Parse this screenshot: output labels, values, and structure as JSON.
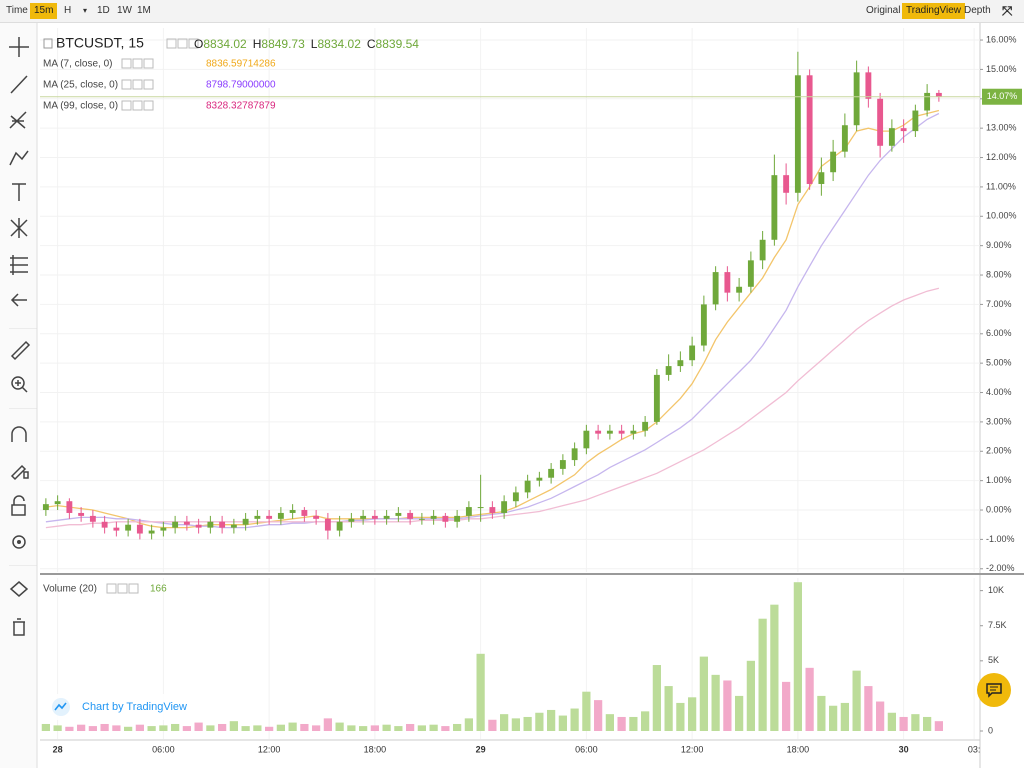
{
  "toolbar": {
    "intervals": [
      "Time",
      "15m",
      "H",
      "1D",
      "1W",
      "1M"
    ],
    "views": [
      "Original",
      "TradingView",
      "Depth"
    ]
  },
  "chart_data": {
    "type": "candlestick",
    "symbol": "BTCUSDT, 15",
    "ohlc_legend": [
      {
        "label": "O",
        "value": 8834.02
      },
      {
        "label": "H",
        "value": 8849.73
      },
      {
        "label": "L",
        "value": 8834.02
      },
      {
        "label": "C",
        "value": 8839.54
      }
    ],
    "categories": [
      null,
      "28",
      null,
      null,
      null,
      null,
      null,
      null,
      null,
      null,
      "06:00",
      null,
      null,
      null,
      null,
      null,
      null,
      null,
      null,
      "12:00",
      null,
      null,
      null,
      null,
      null,
      null,
      null,
      null,
      "18:00",
      null,
      null,
      null,
      null,
      null,
      null,
      null,
      null,
      "29",
      null,
      null,
      null,
      null,
      null,
      null,
      null,
      null,
      "06:00",
      null,
      null,
      null,
      null,
      null,
      null,
      null,
      null,
      "12:00",
      null,
      null,
      null,
      null,
      null,
      null,
      null,
      null,
      "18:00",
      null,
      null,
      null,
      null,
      null,
      null,
      null,
      null,
      "30",
      null,
      null,
      null,
      null,
      null,
      "03:"
    ],
    "candles": {
      "open": [
        0,
        0.2,
        0.3,
        -0.1,
        -0.2,
        -0.4,
        -0.6,
        -0.7,
        -0.5,
        -0.8,
        -0.7,
        -0.6,
        -0.4,
        -0.5,
        -0.6,
        -0.4,
        -0.6,
        -0.5,
        -0.3,
        -0.2,
        -0.3,
        -0.1,
        0,
        -0.2,
        -0.3,
        -0.7,
        -0.4,
        -0.3,
        -0.2,
        -0.3,
        -0.2,
        -0.1,
        -0.3,
        -0.3,
        -0.2,
        -0.4,
        -0.2,
        0.1,
        0.1,
        -0.1,
        0.3,
        0.6,
        1.0,
        1.1,
        1.4,
        1.7,
        2.1,
        2.7,
        2.6,
        2.7,
        2.6,
        2.7,
        3.0,
        4.6,
        4.9,
        5.1,
        5.6,
        7.0,
        8.1,
        7.4,
        7.6,
        8.5,
        9.2,
        11.4,
        10.8,
        14.8,
        11.1,
        11.5,
        12.2,
        13.1,
        14.9,
        14.0,
        12.4,
        13.0,
        12.9,
        13.6,
        14.2,
        null,
        null,
        null
      ],
      "high": [
        0.4,
        0.5,
        0.4,
        0.1,
        0,
        -0.2,
        -0.4,
        -0.3,
        -0.3,
        -0.5,
        -0.4,
        -0.2,
        -0.2,
        -0.3,
        -0.2,
        -0.2,
        -0.3,
        -0.1,
        0,
        0,
        0.1,
        0.2,
        0.1,
        0,
        -0.1,
        -0.2,
        -0.1,
        0,
        0,
        0,
        0.1,
        0,
        -0.1,
        0,
        -0.1,
        0,
        0.3,
        1.2,
        0.3,
        0.5,
        0.8,
        1.2,
        1.3,
        1.6,
        1.9,
        2.3,
        2.9,
        2.9,
        2.9,
        2.9,
        2.9,
        3.2,
        4.8,
        5.3,
        5.4,
        5.9,
        7.3,
        8.3,
        8.3,
        7.9,
        8.8,
        9.5,
        12.1,
        11.8,
        15.6,
        15.0,
        12.0,
        12.6,
        13.5,
        15.3,
        15.1,
        14.2,
        13.3,
        13.3,
        13.8,
        14.5,
        14.3,
        null,
        null,
        null
      ],
      "low": [
        -0.2,
        0,
        -0.3,
        -0.4,
        -0.6,
        -0.8,
        -0.9,
        -0.9,
        -1.0,
        -1.0,
        -0.9,
        -0.8,
        -0.7,
        -0.8,
        -0.8,
        -0.8,
        -0.8,
        -0.7,
        -0.5,
        -0.5,
        -0.5,
        -0.3,
        -0.4,
        -0.5,
        -1.0,
        -0.9,
        -0.6,
        -0.5,
        -0.5,
        -0.5,
        -0.4,
        -0.5,
        -0.5,
        -0.5,
        -0.6,
        -0.6,
        -0.4,
        -0.4,
        -0.3,
        -0.3,
        0.1,
        0.4,
        0.8,
        0.9,
        1.2,
        1.5,
        1.9,
        2.4,
        2.4,
        2.4,
        2.4,
        2.5,
        2.9,
        4.4,
        4.7,
        4.9,
        5.4,
        6.8,
        7.1,
        7.1,
        7.4,
        8.2,
        9.0,
        10.4,
        10.5,
        10.9,
        10.7,
        11.2,
        12.0,
        12.9,
        13.7,
        12.0,
        12.2,
        12.5,
        12.7,
        13.4,
        13.9,
        null,
        null,
        null
      ],
      "close": [
        0.2,
        0.3,
        -0.1,
        -0.2,
        -0.4,
        -0.6,
        -0.7,
        -0.5,
        -0.8,
        -0.7,
        -0.6,
        -0.4,
        -0.5,
        -0.6,
        -0.4,
        -0.6,
        -0.5,
        -0.3,
        -0.2,
        -0.3,
        -0.1,
        0,
        -0.2,
        -0.3,
        -0.7,
        -0.4,
        -0.3,
        -0.2,
        -0.3,
        -0.2,
        -0.1,
        -0.3,
        -0.3,
        -0.2,
        -0.4,
        -0.2,
        0.1,
        0.1,
        -0.1,
        0.3,
        0.6,
        1.0,
        1.1,
        1.4,
        1.7,
        2.1,
        2.7,
        2.6,
        2.7,
        2.6,
        2.7,
        3.0,
        4.6,
        4.9,
        5.1,
        5.6,
        7.0,
        8.1,
        7.4,
        7.6,
        8.5,
        9.2,
        11.4,
        10.8,
        14.8,
        11.1,
        11.5,
        12.2,
        13.1,
        14.9,
        14.0,
        12.4,
        13.0,
        12.9,
        13.6,
        14.2,
        14.07,
        null,
        null,
        null
      ]
    },
    "up_color": "#6fa83a",
    "down_color": "#e8588f",
    "series": [
      {
        "name": "MA (7, close, 0)",
        "value": 8836.59714286,
        "label_color": "#f0a818",
        "color": "#f3c56b",
        "values": [
          0.1,
          0.15,
          0.1,
          0.05,
          0,
          -0.1,
          -0.2,
          -0.3,
          -0.45,
          -0.55,
          -0.6,
          -0.6,
          -0.6,
          -0.55,
          -0.5,
          -0.5,
          -0.5,
          -0.5,
          -0.45,
          -0.4,
          -0.35,
          -0.3,
          -0.25,
          -0.2,
          -0.3,
          -0.3,
          -0.3,
          -0.3,
          -0.3,
          -0.3,
          -0.3,
          -0.25,
          -0.25,
          -0.25,
          -0.25,
          -0.25,
          -0.2,
          -0.15,
          -0.1,
          -0.05,
          0.1,
          0.3,
          0.5,
          0.7,
          0.95,
          1.2,
          1.6,
          1.9,
          2.15,
          2.4,
          2.6,
          2.7,
          3.0,
          3.4,
          3.8,
          4.3,
          5.0,
          5.8,
          6.4,
          6.9,
          7.4,
          7.9,
          8.6,
          9.2,
          10.4,
          11.0,
          11.7,
          12.0,
          12.3,
          12.9,
          13.0,
          12.9,
          12.9,
          13.1,
          13.4,
          13.5,
          13.6,
          null,
          null,
          null
        ]
      },
      {
        "name": "MA (25, close, 0)",
        "value": 8798.79,
        "value_label": "8798.79000000",
        "label_color": "#8a3bff",
        "color": "#c6b6ee",
        "values": [
          -0.4,
          -0.35,
          -0.3,
          -0.25,
          -0.25,
          -0.25,
          -0.3,
          -0.3,
          -0.35,
          -0.4,
          -0.45,
          -0.5,
          -0.5,
          -0.55,
          -0.55,
          -0.6,
          -0.6,
          -0.6,
          -0.55,
          -0.5,
          -0.5,
          -0.45,
          -0.45,
          -0.4,
          -0.4,
          -0.4,
          -0.35,
          -0.35,
          -0.3,
          -0.3,
          -0.3,
          -0.3,
          -0.3,
          -0.3,
          -0.3,
          -0.3,
          -0.25,
          -0.2,
          -0.15,
          -0.1,
          0,
          0.1,
          0.25,
          0.4,
          0.6,
          0.8,
          1.0,
          1.2,
          1.45,
          1.65,
          1.85,
          2.05,
          2.3,
          2.55,
          2.8,
          3.1,
          3.5,
          3.9,
          4.3,
          4.7,
          5.1,
          5.6,
          6.2,
          6.8,
          7.6,
          8.3,
          9.0,
          9.6,
          10.2,
          10.8,
          11.4,
          11.9,
          12.3,
          12.7,
          13.0,
          13.3,
          13.5,
          null,
          null,
          null
        ]
      },
      {
        "name": "MA (99, close, 0)",
        "value": 8328.32787879,
        "label_color": "#d9267e",
        "color": "#f1bdd4",
        "values": [
          -0.6,
          -0.55,
          -0.5,
          -0.5,
          -0.45,
          -0.45,
          -0.4,
          -0.4,
          -0.4,
          -0.4,
          -0.4,
          -0.4,
          -0.4,
          -0.4,
          -0.4,
          -0.4,
          -0.4,
          -0.4,
          -0.4,
          -0.4,
          -0.4,
          -0.4,
          -0.4,
          -0.4,
          -0.4,
          -0.4,
          -0.4,
          -0.4,
          -0.4,
          -0.4,
          -0.4,
          -0.4,
          -0.35,
          -0.35,
          -0.35,
          -0.35,
          -0.3,
          -0.3,
          -0.25,
          -0.2,
          -0.15,
          -0.1,
          -0.05,
          0.05,
          0.15,
          0.25,
          0.35,
          0.5,
          0.65,
          0.8,
          0.95,
          1.1,
          1.25,
          1.45,
          1.65,
          1.85,
          2.05,
          2.3,
          2.55,
          2.8,
          3.1,
          3.4,
          3.7,
          4.0,
          4.4,
          4.75,
          5.1,
          5.45,
          5.8,
          6.15,
          6.45,
          6.7,
          6.95,
          7.15,
          7.3,
          7.45,
          7.55,
          null,
          null,
          null
        ]
      }
    ],
    "ylim": [
      -2.11,
      16.41
    ],
    "yticks": [
      {
        "value": 16,
        "label": "16.00%"
      },
      {
        "value": 15,
        "label": "15.00%"
      },
      {
        "value": 14,
        "label": "14.00%"
      },
      {
        "value": 13,
        "label": "13.00%"
      },
      {
        "value": 12,
        "label": "12.00%"
      },
      {
        "value": 11,
        "label": "11.00%"
      },
      {
        "value": 10,
        "label": "10.00%"
      },
      {
        "value": 9,
        "label": "9.00%"
      },
      {
        "value": 8,
        "label": "8.00%"
      },
      {
        "value": 7,
        "label": "7.00%"
      },
      {
        "value": 6,
        "label": "6.00%"
      },
      {
        "value": 5,
        "label": "5.00%"
      },
      {
        "value": 4,
        "label": "4.00%"
      },
      {
        "value": 3,
        "label": "3.00%"
      },
      {
        "value": 2,
        "label": "2.00%"
      },
      {
        "value": 1,
        "label": "1.00%"
      },
      {
        "value": 0,
        "label": "0.00%"
      },
      {
        "value": -1,
        "label": "-1.00%"
      },
      {
        "value": -2,
        "label": "-2.00%"
      }
    ],
    "grid": true,
    "last_value": 14.07,
    "last_label": "14.07%",
    "last_color": "#7cb342",
    "volume": {
      "name": "Volume (20)",
      "value": 166,
      "values": [
        500,
        400,
        300,
        450,
        350,
        500,
        400,
        300,
        450,
        350,
        400,
        500,
        350,
        600,
        400,
        500,
        700,
        350,
        400,
        300,
        450,
        600,
        500,
        400,
        900,
        600,
        400,
        350,
        400,
        450,
        350,
        500,
        400,
        450,
        350,
        500,
        900,
        5500,
        800,
        1200,
        900,
        1000,
        1300,
        1500,
        1100,
        1600,
        2800,
        2200,
        1200,
        1000,
        1000,
        1400,
        4700,
        3200,
        2000,
        2400,
        5300,
        4000,
        3600,
        2500,
        5000,
        8000,
        9000,
        3500,
        10600,
        4500,
        2500,
        1800,
        2000,
        4300,
        3200,
        2100,
        1300,
        1000,
        1200,
        1000,
        700,
        null,
        null,
        null
      ],
      "ylim": [
        0,
        10900
      ],
      "yticks": [
        {
          "value": 10000,
          "label": "10K"
        },
        {
          "value": 7500,
          "label": "7.5K"
        },
        {
          "value": 5000,
          "label": "5K"
        },
        0
      ],
      "up_color": "#bcdc99",
      "down_color": "#f2a9c9"
    },
    "watermark": "Chart by TradingView"
  }
}
